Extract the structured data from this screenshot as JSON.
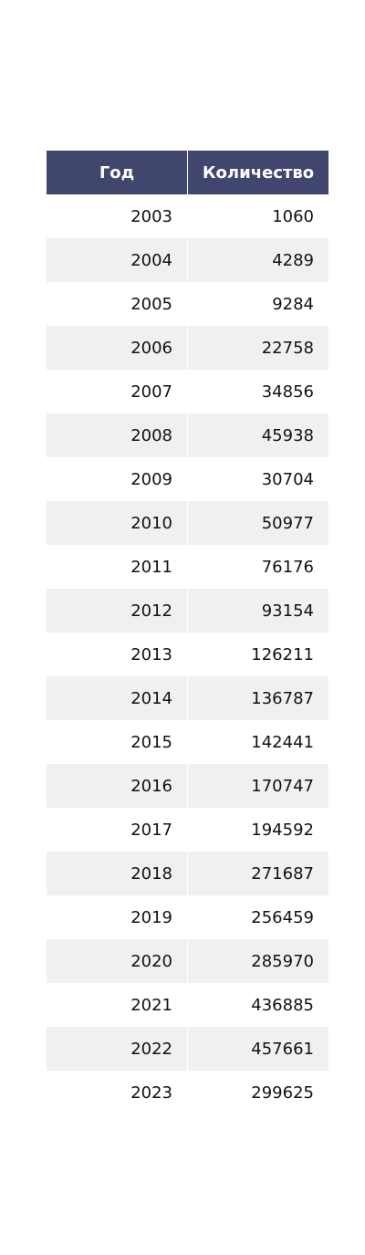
{
  "colors": {
    "header_bg": "#40466e",
    "header_text": "#ffffff",
    "row_alt": "#f0f0f0",
    "row_base": "#ffffff"
  },
  "chart_data": {
    "type": "table",
    "columns": [
      "Год",
      "Количество"
    ],
    "rows": [
      [
        "2003",
        "1060"
      ],
      [
        "2004",
        "4289"
      ],
      [
        "2005",
        "9284"
      ],
      [
        "2006",
        "22758"
      ],
      [
        "2007",
        "34856"
      ],
      [
        "2008",
        "45938"
      ],
      [
        "2009",
        "30704"
      ],
      [
        "2010",
        "50977"
      ],
      [
        "2011",
        "76176"
      ],
      [
        "2012",
        "93154"
      ],
      [
        "2013",
        "126211"
      ],
      [
        "2014",
        "136787"
      ],
      [
        "2015",
        "142441"
      ],
      [
        "2016",
        "170747"
      ],
      [
        "2017",
        "194592"
      ],
      [
        "2018",
        "271687"
      ],
      [
        "2019",
        "256459"
      ],
      [
        "2020",
        "285970"
      ],
      [
        "2021",
        "436885"
      ],
      [
        "2022",
        "457661"
      ],
      [
        "2023",
        "299625"
      ]
    ]
  }
}
